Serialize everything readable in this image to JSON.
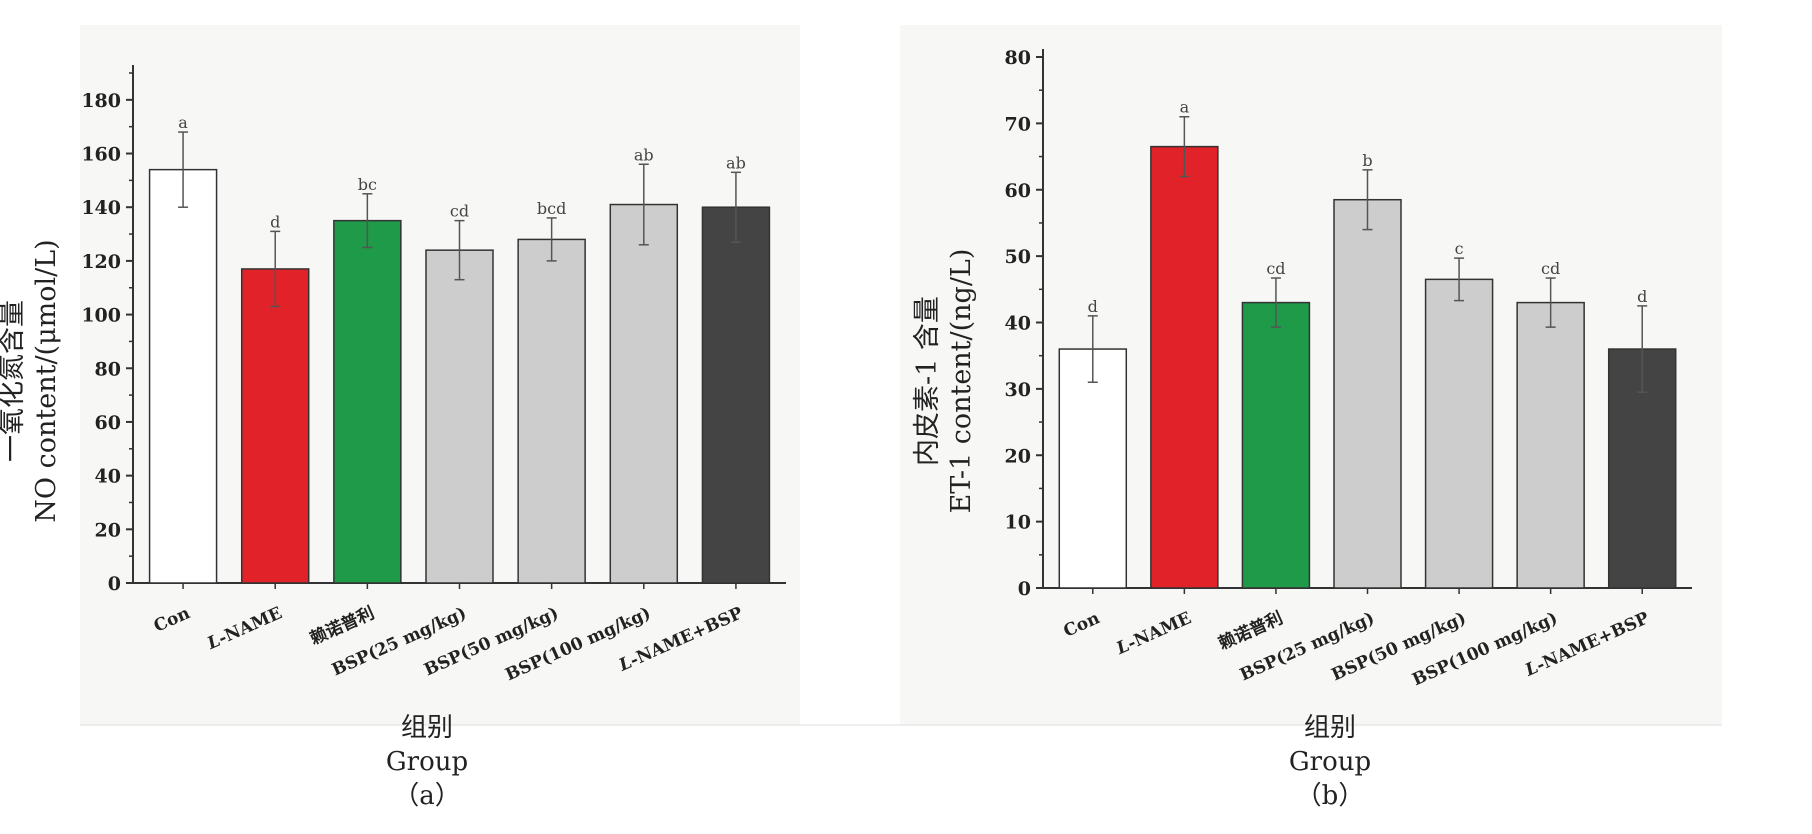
{
  "colors": {
    "panel_bg": "#f7f7f5",
    "axis": "#333333",
    "con": "#ffffff",
    "lname": "#e12228",
    "drug": "#1e9a48",
    "bsp": "#cdcdcd",
    "combo": "#444444"
  },
  "panels": [
    {
      "xlabel_cn": "组别",
      "xlabel_en": "Group",
      "panel_label": "（a）",
      "ylabel_cn": "一氧化氮含量",
      "ylabel_en": "NO content/(μmol/L)"
    },
    {
      "xlabel_cn": "组别",
      "xlabel_en": "Group",
      "panel_label": "（b）",
      "ylabel_cn": "内皮素-1 含量",
      "ylabel_en": "ET-1 content/(ng/L)"
    }
  ],
  "chart_data": [
    {
      "type": "bar",
      "categories": [
        "Con",
        "L-NAME",
        "赖诺普利",
        "BSP(25 mg/kg)",
        "BSP(50 mg/kg)",
        "BSP(100 mg/kg)",
        "L-NAME+BSP"
      ],
      "values": [
        154,
        117,
        135,
        124,
        128,
        141,
        140
      ],
      "errors": [
        14,
        14,
        10,
        11,
        8,
        15,
        13
      ],
      "significance": [
        "a",
        "d",
        "bc",
        "cd",
        "bcd",
        "ab",
        "ab"
      ],
      "bar_colors": [
        "con",
        "lname",
        "drug",
        "bsp",
        "bsp",
        "bsp",
        "combo"
      ],
      "ylim": [
        0,
        190
      ],
      "yticks": [
        0,
        20,
        40,
        60,
        80,
        100,
        120,
        140,
        160,
        180
      ],
      "ylabel": "一氧化氮含量 NO content/(μmol/L)",
      "xlabel": "组别 Group"
    },
    {
      "type": "bar",
      "categories": [
        "Con",
        "L-NAME",
        "赖诺普利",
        "BSP(25 mg/kg)",
        "BSP(50 mg/kg)",
        "BSP(100 mg/kg)",
        "L-NAME+BSP"
      ],
      "values": [
        36,
        66.5,
        43,
        58.5,
        46.5,
        43,
        36
      ],
      "errors": [
        5,
        4.5,
        3.7,
        4.5,
        3.2,
        3.7,
        6.5
      ],
      "significance": [
        "d",
        "a",
        "cd",
        "b",
        "c",
        "cd",
        "d"
      ],
      "bar_colors": [
        "con",
        "lname",
        "drug",
        "bsp",
        "bsp",
        "bsp",
        "combo"
      ],
      "ylim": [
        0,
        80
      ],
      "yticks": [
        0,
        10,
        20,
        30,
        40,
        50,
        60,
        70,
        80
      ],
      "ylabel": "内皮素-1 含量 ET-1 content/(ng/L)",
      "xlabel": "组别 Group"
    }
  ]
}
